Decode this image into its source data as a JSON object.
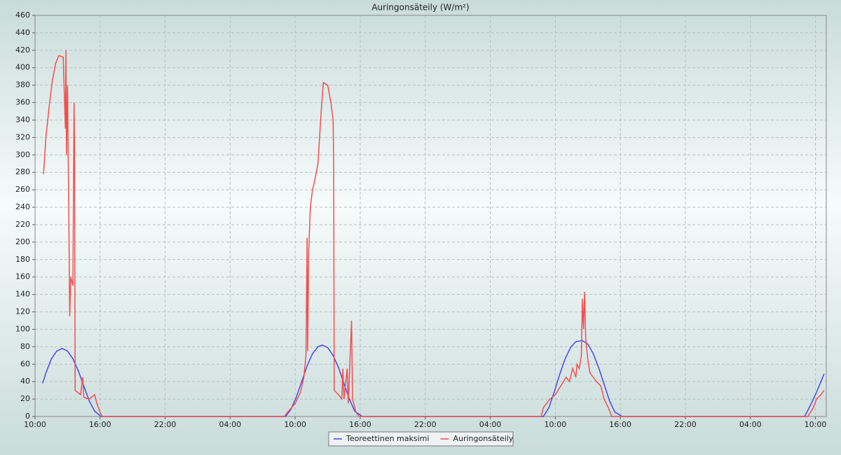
{
  "chart_data": {
    "type": "line",
    "title": "Auringonsäteily (W/m²)",
    "xlim": [
      0,
      73
    ],
    "ylim": [
      0,
      460
    ],
    "xticks": [
      {
        "value": 0,
        "label": "10:00"
      },
      {
        "value": 6,
        "label": "16:00"
      },
      {
        "value": 12,
        "label": "22:00"
      },
      {
        "value": 18,
        "label": "04:00"
      },
      {
        "value": 24,
        "label": "10:00"
      },
      {
        "value": 30,
        "label": "16:00"
      },
      {
        "value": 36,
        "label": "22:00"
      },
      {
        "value": 42,
        "label": "04:00"
      },
      {
        "value": 48,
        "label": "10:00"
      },
      {
        "value": 54,
        "label": "16:00"
      },
      {
        "value": 60,
        "label": "22:00"
      },
      {
        "value": 66,
        "label": "04:00"
      },
      {
        "value": 72,
        "label": "10:00"
      }
    ],
    "yticks": [
      0,
      20,
      40,
      60,
      80,
      100,
      120,
      140,
      160,
      180,
      200,
      220,
      240,
      260,
      280,
      300,
      320,
      340,
      360,
      380,
      400,
      420,
      440,
      460
    ],
    "grid": true,
    "legend": "bottom",
    "series": [
      {
        "name": "Teoreettinen maksimi",
        "color": "#4848e8",
        "x": [
          0.7,
          1.0,
          1.5,
          2.0,
          2.5,
          3.0,
          3.5,
          4.0,
          4.5,
          5.0,
          5.5,
          6.1,
          23.1,
          23.6,
          24.1,
          24.6,
          25.1,
          25.6,
          26.1,
          26.5,
          27.0,
          27.5,
          28.0,
          28.5,
          29.0,
          29.5,
          30.2,
          46.9,
          47.4,
          47.9,
          48.4,
          48.9,
          49.4,
          49.9,
          50.5,
          51.0,
          51.5,
          52.0,
          52.5,
          53.0,
          53.5,
          54.2,
          71.0,
          71.5,
          72.0,
          72.5,
          72.8
        ],
        "values": [
          38,
          50,
          66,
          75,
          78,
          75,
          66,
          52,
          35,
          18,
          6,
          0,
          0,
          8,
          22,
          40,
          58,
          72,
          80,
          82,
          79,
          70,
          56,
          38,
          20,
          6,
          0,
          0,
          10,
          28,
          48,
          66,
          79,
          86,
          87,
          83,
          72,
          56,
          37,
          18,
          5,
          0,
          0,
          12,
          25,
          40,
          49
        ]
      },
      {
        "name": "Auringonsäteily",
        "color": "#f05050",
        "x": [
          0.78,
          1.0,
          1.3,
          1.6,
          1.9,
          2.2,
          2.6,
          2.8,
          2.85,
          2.9,
          3.0,
          3.2,
          3.3,
          3.5,
          3.55,
          3.6,
          3.65,
          3.7,
          3.9,
          4.2,
          4.4,
          4.5,
          5.0,
          5.5,
          5.7,
          6.0,
          6.2,
          23.0,
          23.3,
          24.0,
          24.5,
          24.8,
          25.0,
          25.1,
          25.15,
          25.25,
          25.4,
          25.6,
          25.8,
          26.1,
          26.4,
          26.6,
          27.0,
          27.3,
          27.5,
          27.55,
          27.6,
          28.0,
          28.3,
          28.4,
          28.5,
          28.8,
          28.9,
          29.2,
          29.3,
          29.4,
          29.6,
          29.9,
          46.7,
          46.9,
          47.5,
          48.0,
          48.5,
          49.0,
          49.3,
          49.6,
          49.9,
          50.0,
          50.2,
          50.4,
          50.5,
          50.6,
          50.7,
          50.8,
          51.0,
          51.2,
          51.5,
          51.8,
          52.2,
          52.5,
          52.9,
          53.2,
          71.3,
          71.8,
          72.1,
          72.5,
          72.8
        ],
        "values": [
          278,
          320,
          355,
          385,
          405,
          414,
          412,
          330,
          420,
          300,
          380,
          115,
          160,
          150,
          270,
          360,
          305,
          30,
          28,
          25,
          45,
          22,
          20,
          25,
          15,
          5,
          0,
          0,
          5,
          15,
          28,
          45,
          70,
          205,
          75,
          190,
          240,
          260,
          270,
          290,
          350,
          383,
          380,
          360,
          340,
          290,
          30,
          25,
          20,
          55,
          20,
          55,
          15,
          110,
          20,
          15,
          5,
          0,
          0,
          10,
          20,
          25,
          35,
          45,
          40,
          55,
          45,
          60,
          55,
          70,
          135,
          100,
          143,
          90,
          65,
          50,
          45,
          40,
          35,
          20,
          10,
          0,
          0,
          10,
          20,
          25,
          30
        ]
      }
    ]
  }
}
